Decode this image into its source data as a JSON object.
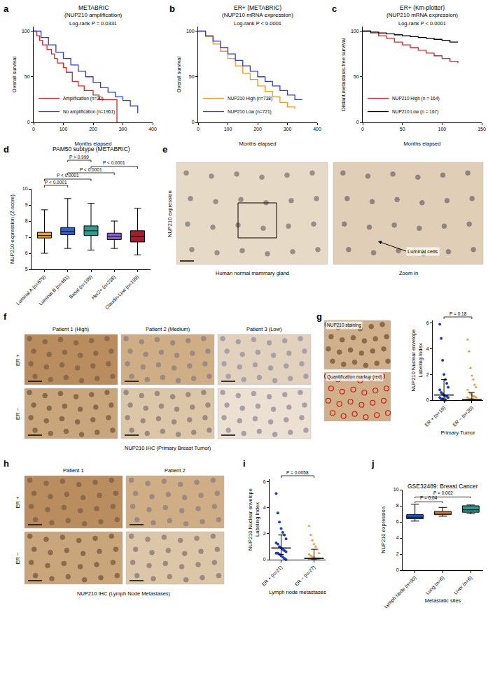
{
  "chart_data": [
    {
      "panel": "a",
      "type": "line",
      "line_style": "step",
      "title": "METABRIC",
      "subtitle": "(NUP210 amplification)",
      "annotation": "Log-rank P = 0.0331",
      "xlabel": "Months elapsed",
      "ylabel": "Overall survival",
      "xlim": [
        0,
        400
      ],
      "xticks": [
        0,
        100,
        200,
        300,
        400
      ],
      "ylim": [
        0,
        105
      ],
      "yticks": [
        0,
        50,
        100
      ],
      "grid": false,
      "legend": "lower left",
      "series": [
        {
          "name": "Amplification (n=20)",
          "color": "#e8202a",
          "x": [
            0,
            10,
            20,
            30,
            45,
            60,
            70,
            80,
            100,
            110,
            130,
            150,
            170,
            200,
            220,
            260,
            280
          ],
          "values": [
            100,
            95,
            90,
            85,
            80,
            75,
            70,
            65,
            60,
            55,
            45,
            40,
            35,
            30,
            25,
            25,
            0
          ]
        },
        {
          "name": "No amplification (n=1961)",
          "color": "#2f3fd4",
          "x": [
            0,
            25,
            50,
            75,
            100,
            125,
            150,
            175,
            200,
            225,
            250,
            275,
            300,
            325,
            350
          ],
          "values": [
            100,
            93,
            85,
            77,
            70,
            63,
            56,
            50,
            44,
            38,
            33,
            28,
            24,
            18,
            10
          ]
        }
      ]
    },
    {
      "panel": "b",
      "type": "line",
      "line_style": "step",
      "title": "ER+ (METABRIC)",
      "subtitle": "(NUP210 mRNA expression)",
      "annotation": "Log-rank P < 0.0001",
      "xlabel": "Months elapsed",
      "ylabel": "Overall survival",
      "xlim": [
        0,
        400
      ],
      "xticks": [
        0,
        100,
        200,
        300,
        400
      ],
      "ylim": [
        0,
        105
      ],
      "yticks": [
        0,
        50,
        100
      ],
      "grid": false,
      "legend": "lower left",
      "series": [
        {
          "name": "NUP210 High (n=738)",
          "color": "#f39a1e",
          "x": [
            0,
            25,
            50,
            75,
            100,
            125,
            150,
            175,
            200,
            225,
            250,
            275,
            300,
            325
          ],
          "values": [
            100,
            94,
            86,
            78,
            70,
            62,
            54,
            47,
            40,
            34,
            28,
            22,
            17,
            15
          ]
        },
        {
          "name": "NUP210 Low (n=721)",
          "color": "#2f3fd4",
          "x": [
            0,
            25,
            50,
            75,
            100,
            125,
            150,
            175,
            200,
            225,
            250,
            275,
            300,
            325,
            350
          ],
          "values": [
            100,
            95,
            89,
            82,
            75,
            68,
            62,
            56,
            50,
            45,
            40,
            35,
            30,
            25,
            25
          ]
        }
      ]
    },
    {
      "panel": "c",
      "type": "line",
      "line_style": "step",
      "title": "ER+ (Km-plotter)",
      "subtitle": "(NUP210 mRNA expression)",
      "annotation": "Log-rank P < 0.0001",
      "xlabel": "Months elapsed",
      "ylabel": "Distant metastasis-free survival",
      "xlim": [
        0,
        150
      ],
      "xticks": [
        0,
        50,
        100,
        150
      ],
      "ylim": [
        0,
        105
      ],
      "yticks": [
        0,
        50,
        100
      ],
      "grid": false,
      "legend": "lower left",
      "series": [
        {
          "name": "NUP210 High (n = 164)",
          "color": "#e8202a",
          "x": [
            0,
            10,
            20,
            30,
            40,
            50,
            60,
            70,
            80,
            90,
            100,
            110,
            120
          ],
          "values": [
            100,
            98,
            95,
            92,
            88,
            85,
            82,
            79,
            76,
            73,
            70,
            67,
            65
          ]
        },
        {
          "name": "NUP210 Low (n = 167)",
          "color": "#000000",
          "x": [
            0,
            10,
            20,
            30,
            40,
            50,
            60,
            70,
            80,
            90,
            100,
            110,
            120
          ],
          "values": [
            100,
            99,
            98,
            97,
            96,
            95,
            94,
            93,
            92,
            91,
            90,
            88,
            88
          ]
        }
      ]
    },
    {
      "panel": "d",
      "type": "box",
      "title": "PAM50 subtype (METABRIC)",
      "ylabel": "NUP210 expression (Z-score)",
      "ylim": [
        5,
        10
      ],
      "yticks": [
        5,
        6,
        7,
        8,
        9,
        10
      ],
      "grid": false,
      "categories": [
        "Luminal A (n=679)",
        "Luminal B (n=461)",
        "Basal (n=199)",
        "Her2+ (n=236)",
        "Claudin-Low (n=199)"
      ],
      "colors": [
        "#f0a030",
        "#3060c8",
        "#2a9d8f",
        "#8a63c8",
        "#a02030"
      ],
      "lower": [
        6.0,
        6.3,
        6.2,
        6.3,
        5.9
      ],
      "q1": [
        6.95,
        7.15,
        7.1,
        6.85,
        6.7
      ],
      "median": [
        7.1,
        7.35,
        7.4,
        7.05,
        7.05
      ],
      "q3": [
        7.3,
        7.6,
        7.7,
        7.25,
        7.4
      ],
      "upper": [
        8.7,
        9.4,
        9.1,
        8.0,
        8.8
      ],
      "comparisons": [
        {
          "groups": [
            "Luminal A (n=679)",
            "Luminal B (n=461)"
          ],
          "label": "P < 0.0001"
        },
        {
          "groups": [
            "Luminal A (n=679)",
            "Basal (n=199)"
          ],
          "label": "P < 0.0001"
        },
        {
          "groups": [
            "Luminal B (n=461)",
            "Her2+ (n=236)"
          ],
          "label": "P < 0.0001"
        },
        {
          "groups": [
            "Basal (n=199)",
            "Claudin-Low (n=199)"
          ],
          "label": "P < 0.0001"
        },
        {
          "groups": [
            "Luminal B (n=461)",
            "Basal (n=199)"
          ],
          "label": "P > 0.999"
        }
      ]
    },
    {
      "type": "scatter",
      "xlabel": "Primary Tumor",
      "ylabel": [
        "NUP210 Nuclear envelope",
        "Labeling Index"
      ],
      "ylim": [
        0,
        6.2
      ],
      "yticks": [
        0,
        2,
        4,
        6
      ],
      "grid": false,
      "categories": [
        "ER + (n=19)",
        "ER − (n=30)"
      ],
      "colors": [
        "#1a3ccc",
        "#f0912a"
      ],
      "values": [
        [
          5.9,
          4.8,
          3.1,
          2.0,
          1.6,
          1.3,
          1.0,
          0.8,
          0.6,
          0.5,
          0.4,
          0.3,
          0.3,
          0.2,
          0.2,
          0.1,
          0.1,
          0.0,
          0.0
        ],
        [
          4.7,
          3.8,
          2.5,
          1.9,
          1.6,
          1.2,
          1.0,
          0.8,
          0.6,
          0.5,
          0.4,
          0.3,
          0.3,
          0.2,
          0.2,
          0.1,
          0.1,
          0.1,
          0.1,
          0.0,
          0.0,
          0.0,
          0.0,
          0.0,
          0.0,
          0.0,
          0.0,
          0.0,
          0.0,
          0.0
        ]
      ],
      "median": [
        0.4,
        0.05
      ],
      "q1": [
        0.1,
        0.0
      ],
      "q3": [
        1.6,
        0.6
      ],
      "comparisons": [
        {
          "groups": [
            "ER + (n=19)",
            "ER − (n=30)"
          ],
          "label": "P = 0.18"
        }
      ]
    },
    {
      "panel": "i",
      "type": "scatter",
      "xlabel": "Lymph node metastases",
      "ylabel": [
        "NUP210 Nuclear envelope",
        "Labeling Index"
      ],
      "ylim": [
        0,
        6.2
      ],
      "yticks": [
        0,
        2,
        4,
        6
      ],
      "grid": false,
      "categories": [
        "ER + (n=21)",
        "ER − (n=27)"
      ],
      "colors": [
        "#1a3ccc",
        "#f0912a"
      ],
      "values": [
        [
          5.1,
          3.6,
          2.9,
          2.4,
          2.1,
          1.9,
          1.6,
          1.3,
          1.2,
          1.0,
          0.9,
          0.8,
          0.7,
          0.6,
          0.5,
          0.5,
          0.4,
          0.3,
          0.2,
          0.1,
          0.0
        ],
        [
          2.6,
          1.9,
          1.5,
          1.2,
          1.0,
          0.8,
          0.5,
          0.4,
          0.3,
          0.2,
          0.2,
          0.1,
          0.1,
          0.1,
          0.0,
          0.0,
          0.0,
          0.0,
          0.0,
          0.0,
          0.0,
          0.0,
          0.0,
          0.0,
          0.0,
          0.0,
          0.0
        ]
      ],
      "median": [
        0.9,
        0.1
      ],
      "q1": [
        0.4,
        0.0
      ],
      "q3": [
        1.9,
        0.8
      ],
      "comparisons": [
        {
          "groups": [
            "ER + (n=21)",
            "ER − (n=27)"
          ],
          "label": "P = 0.0058"
        }
      ]
    },
    {
      "panel": "j",
      "type": "box",
      "title": "GSE32489: Breast Cancer",
      "xlabel": "Metastatic sites",
      "ylabel": "NUP210 expression",
      "ylim": [
        0,
        10
      ],
      "yticks": [
        0,
        2,
        4,
        6,
        8,
        10
      ],
      "grid": false,
      "categories": [
        "Lymph Node (n=90)",
        "Lung (n=6)",
        "Liver (n=6)"
      ],
      "colors": [
        "#3060c8",
        "#f0a030",
        "#2a9d8f"
      ],
      "lower": [
        6.1,
        6.7,
        7.0
      ],
      "q1": [
        6.4,
        6.9,
        7.2
      ],
      "median": [
        6.6,
        7.1,
        7.5
      ],
      "q3": [
        6.9,
        7.3,
        8.0
      ],
      "upper": [
        8.2,
        7.8,
        8.1
      ],
      "comparisons": [
        {
          "groups": [
            "Lymph Node (n=90)",
            "Lung (n=6)"
          ],
          "label": "P = 0.04"
        },
        {
          "groups": [
            "Lymph Node (n=90)",
            "Liver (n=6)"
          ],
          "label": "P = 0.002"
        }
      ]
    }
  ],
  "image_panels": [
    {
      "panel": "e",
      "label": "NUP210 expression",
      "caption": "Human normal mammary gland",
      "zoom": "Zoom in",
      "annotation": "Luminal cells"
    },
    {
      "panel": "f",
      "columns": [
        "Patient 1 (High)",
        "Patient 2 (Medium)",
        "Patient 3 (Low)"
      ],
      "rows": [
        "ER +",
        "ER −"
      ],
      "caption": "NUP210 IHC (Primary Breast Tumor)"
    },
    {
      "panel": "g",
      "images": [
        "NUP210 staining",
        "Quantification markup (red)"
      ]
    },
    {
      "panel": "h",
      "columns": [
        "Patient 1",
        "Patient 2"
      ],
      "rows": [
        "ER +",
        "ER −"
      ],
      "caption": "NUP210 IHC (Lymph Node Metastases)"
    }
  ]
}
